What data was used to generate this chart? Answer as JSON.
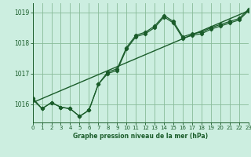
{
  "title": "Graphe pression niveau de la mer (hPa)",
  "bg_color": "#cceee0",
  "line_color": "#1a5c2a",
  "grid_color": "#88bb99",
  "x_min": 0,
  "x_max": 23,
  "y_min": 1015.4,
  "y_max": 1019.3,
  "yticks": [
    1016,
    1017,
    1018,
    1019
  ],
  "xticks": [
    0,
    1,
    2,
    3,
    4,
    5,
    6,
    7,
    8,
    9,
    10,
    11,
    12,
    13,
    14,
    15,
    16,
    17,
    18,
    19,
    20,
    21,
    22,
    23
  ],
  "series1_x": [
    0,
    1,
    2,
    3,
    4,
    5,
    6,
    7,
    8,
    9,
    10,
    11,
    12,
    13,
    14,
    15,
    16,
    17,
    18,
    19,
    20,
    21,
    22,
    23
  ],
  "series1_y": [
    1016.2,
    1015.85,
    1016.05,
    1015.9,
    1015.85,
    1015.6,
    1015.8,
    1016.65,
    1017.05,
    1017.15,
    1017.85,
    1018.25,
    1018.35,
    1018.55,
    1018.9,
    1018.7,
    1018.2,
    1018.3,
    1018.35,
    1018.5,
    1018.6,
    1018.7,
    1018.8,
    1019.1
  ],
  "series2_x": [
    0,
    1,
    2,
    3,
    4,
    5,
    6,
    7,
    8,
    9,
    10,
    11,
    12,
    13,
    14,
    15,
    16,
    17,
    18,
    19,
    20,
    21,
    22,
    23
  ],
  "series2_y": [
    1016.15,
    1015.85,
    1016.05,
    1015.9,
    1015.85,
    1015.6,
    1015.8,
    1016.65,
    1017.0,
    1017.1,
    1017.8,
    1018.2,
    1018.3,
    1018.5,
    1018.85,
    1018.65,
    1018.15,
    1018.25,
    1018.3,
    1018.45,
    1018.55,
    1018.65,
    1018.75,
    1019.05
  ],
  "trend_x": [
    0,
    23
  ],
  "trend_y": [
    1016.05,
    1019.05
  ]
}
